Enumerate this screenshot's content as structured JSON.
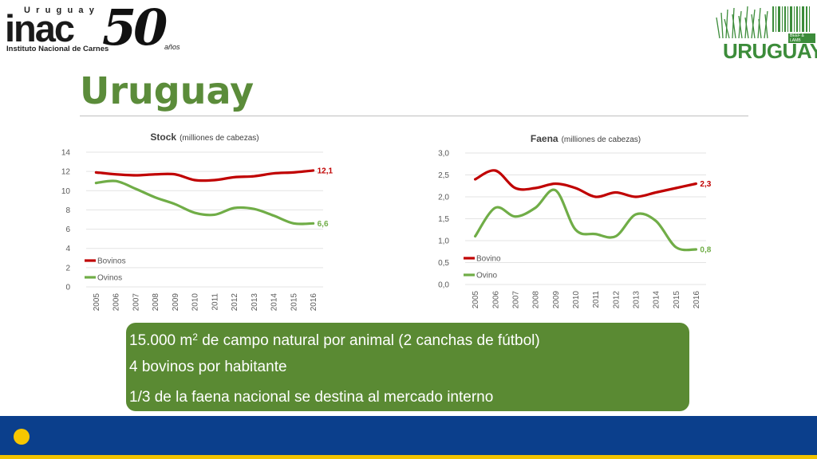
{
  "header": {
    "inac_country": "Uruguay",
    "inac_word": "inac",
    "inac_subtitle": "Instituto Nacional de Carnes",
    "anniversary_number": "50",
    "anniversary_suffix": "años",
    "brand_word": "URUGUAY",
    "brand_tag": "BEEF & LAMB"
  },
  "page_title": "Uruguay",
  "chart_data": [
    {
      "type": "line",
      "title": "Stock",
      "subtitle": "(milliones de cabezas)",
      "categories": [
        "2005",
        "2006",
        "2007",
        "2008",
        "2009",
        "2010",
        "2011",
        "2012",
        "2013",
        "2014",
        "2015",
        "2016"
      ],
      "ylim": [
        0,
        14
      ],
      "yticks": [
        "0",
        "2",
        "4",
        "6",
        "8",
        "10",
        "12",
        "14"
      ],
      "grid": true,
      "legend_position": "bottom-left",
      "series": [
        {
          "name": "Bovinos",
          "color": "#c00000",
          "values": [
            11.9,
            11.7,
            11.6,
            11.7,
            11.7,
            11.1,
            11.1,
            11.4,
            11.5,
            11.8,
            11.9,
            12.1
          ],
          "end_label": "12,1"
        },
        {
          "name": "Ovinos",
          "color": "#70ad47",
          "values": [
            10.8,
            11.0,
            10.2,
            9.3,
            8.6,
            7.7,
            7.5,
            8.2,
            8.1,
            7.4,
            6.6,
            6.6
          ],
          "end_label": "6,6"
        }
      ]
    },
    {
      "type": "line",
      "title": "Faena",
      "subtitle": "(milliones de  cabezas)",
      "categories": [
        "2005",
        "2006",
        "2007",
        "2008",
        "2009",
        "2010",
        "2011",
        "2012",
        "2013",
        "2014",
        "2015",
        "2016"
      ],
      "ylim": [
        0,
        3
      ],
      "yticks": [
        "0,0",
        "0,5",
        "1,0",
        "1,5",
        "2,0",
        "2,5",
        "3,0"
      ],
      "grid": true,
      "legend_position": "bottom-left",
      "series": [
        {
          "name": "Bovino",
          "color": "#c00000",
          "values": [
            2.4,
            2.6,
            2.2,
            2.2,
            2.3,
            2.2,
            2.0,
            2.1,
            2.0,
            2.1,
            2.2,
            2.3
          ],
          "end_label": "2,3"
        },
        {
          "name": "Ovino",
          "color": "#70ad47",
          "values": [
            1.1,
            1.75,
            1.55,
            1.75,
            2.15,
            1.25,
            1.15,
            1.1,
            1.6,
            1.45,
            0.85,
            0.8
          ],
          "end_label": "0,8"
        }
      ]
    }
  ],
  "info": {
    "line1_a": "15.000 m",
    "line1_sup": "2",
    "line1_b": " de campo natural por animal (2 canchas de fútbol)",
    "line2": "4 bovinos por habitante",
    "line3": "1/3 de la faena nacional se destina al mercado interno"
  },
  "colors": {
    "title_green": "#5b8c3a",
    "box_green": "#5a8a33",
    "footer_blue": "#0b3f8c",
    "footer_yellow": "#f2c300"
  }
}
